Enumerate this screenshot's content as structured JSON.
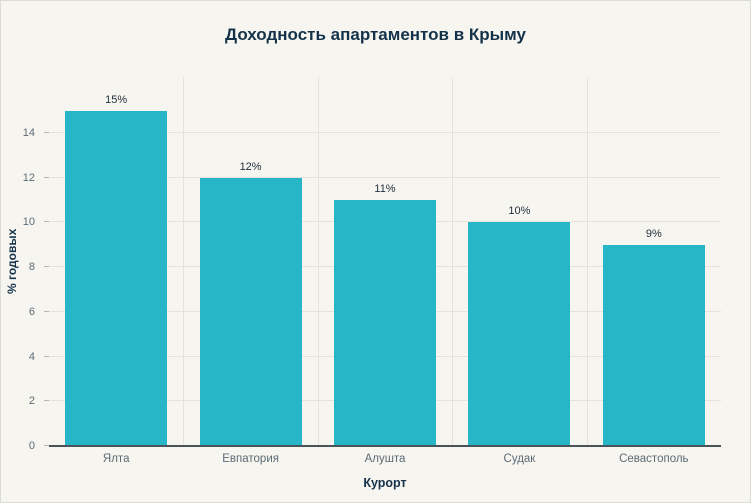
{
  "chart_data": {
    "type": "bar",
    "title": "Доходность апартаментов в Крыму",
    "categories": [
      "Ялта",
      "Евпатория",
      "Алушта",
      "Судак",
      "Севастополь"
    ],
    "values": [
      15,
      12,
      11,
      10,
      9
    ],
    "value_labels": [
      "15%",
      "12%",
      "11%",
      "10%",
      "9%"
    ],
    "xlabel": "Курорт",
    "ylabel": "% годовых",
    "ylim": [
      0,
      16.5
    ],
    "yticks": [
      0,
      2,
      4,
      6,
      8,
      10,
      12,
      14
    ],
    "grid": true,
    "legend": "none",
    "colors": {
      "bar": "#27b6c7",
      "background": "#f7f5f0",
      "grid": "#e4e2da",
      "axis_line": "#47525a",
      "tick_text": "#5b6b74",
      "title_text": "#14324a",
      "value_label_text": "#22323d"
    }
  }
}
